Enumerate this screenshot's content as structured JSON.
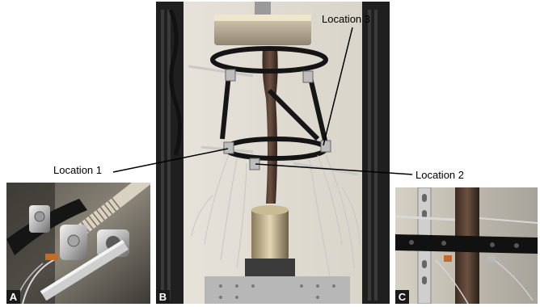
{
  "panels": [
    {
      "letter": "A"
    },
    {
      "letter": "B"
    },
    {
      "letter": "C"
    }
  ],
  "callouts": {
    "location1": "Location 1",
    "location2": "Location 2",
    "location3": "Location 3"
  }
}
